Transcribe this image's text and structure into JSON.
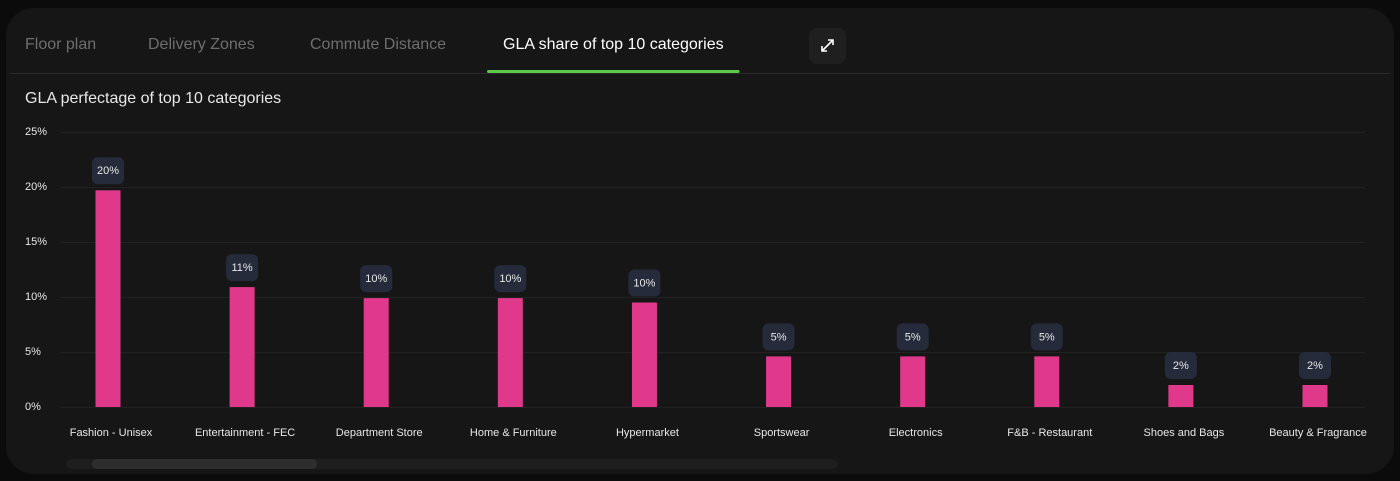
{
  "tabs": [
    "Floor plan",
    "Delivery Zones",
    "Commute Distance",
    "GLA share of top 10 categories"
  ],
  "active_tab": 3,
  "chart_data": {
    "type": "bar",
    "title": "GLA perfectage of top 10 categories",
    "categories": [
      "Fashion - Unisex",
      "Entertainment - FEC",
      "Department Store",
      "Home & Furniture",
      "Hypermarket",
      "Sportswear",
      "Electronics",
      "F&B - Restaurant",
      "Shoes and Bags",
      "Beauty & Fragrance"
    ],
    "values": [
      19.7,
      10.9,
      9.9,
      9.9,
      9.5,
      4.6,
      4.6,
      4.6,
      2.0,
      2.0
    ],
    "value_labels": [
      "20%",
      "11%",
      "10%",
      "10%",
      "10%",
      "5%",
      "5%",
      "5%",
      "2%",
      "2%"
    ],
    "color": "#e0398c",
    "ylim": [
      0,
      25
    ],
    "yticks": [
      {
        "value": 0,
        "label": "0%"
      },
      {
        "value": 5,
        "label": "5%"
      },
      {
        "value": 10,
        "label": "10%"
      },
      {
        "value": 15,
        "label": "15%"
      },
      {
        "value": 20,
        "label": "20%"
      },
      {
        "value": 25,
        "label": "25%"
      }
    ],
    "grid": true
  }
}
